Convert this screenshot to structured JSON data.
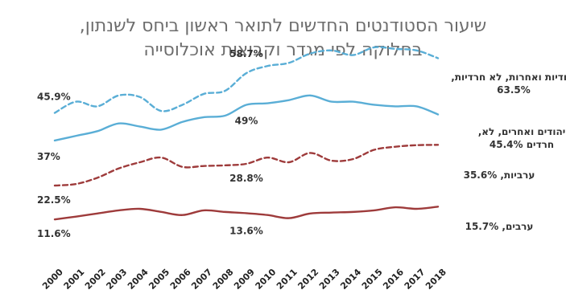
{
  "chart_data": {
    "type": "line",
    "title": "שיעור הסטודנטים החדשים לתואר ראשון ביחס לשנתון,",
    "subtitle": "בחלוקה לפי מגדר וקבוצות אוכלוסייה",
    "categories": [
      "2000",
      "2001",
      "2002",
      "2003",
      "2004",
      "2005",
      "2006",
      "2007",
      "2008",
      "2009",
      "2010",
      "2011",
      "2012",
      "2013",
      "2014",
      "2015",
      "2016",
      "2017",
      "2018"
    ],
    "series": [
      {
        "name": "יהודיות ואחרות, לא חרדיות, 63.5%",
        "color": "#5aaed6",
        "dash": "dashed",
        "values": [
          45.9,
          49.5,
          48.0,
          51.5,
          51.0,
          46.5,
          48.5,
          52.0,
          53.0,
          58.7,
          61.0,
          62.0,
          65.0,
          66.0,
          64.5,
          67.0,
          66.5,
          66.0,
          63.5
        ],
        "start_label": "45.9%",
        "mid_label": "58.7%"
      },
      {
        "name": "יהודים ואחרים, לא חרדים, 45.4%",
        "color": "#5aaed6",
        "dash": "solid",
        "values": [
          37.0,
          38.5,
          40.0,
          42.5,
          41.5,
          40.5,
          43.0,
          44.5,
          45.0,
          48.5,
          49.0,
          50.0,
          51.5,
          49.5,
          49.5,
          48.5,
          48.0,
          48.0,
          45.4
        ],
        "start_label": "37%",
        "mid_label": "49%"
      },
      {
        "name": "ערביות, 35.6%",
        "color": "#9e3b3b",
        "dash": "dashed",
        "values": [
          22.5,
          23.0,
          25.0,
          28.0,
          30.0,
          31.5,
          28.5,
          28.8,
          29.0,
          29.5,
          31.5,
          30.0,
          33.0,
          30.5,
          31.0,
          34.0,
          35.0,
          35.5,
          35.6
        ],
        "start_label": "22.5%",
        "mid_label": "28.8%"
      },
      {
        "name": "ערבים, 15.7%",
        "color": "#9e3b3b",
        "dash": "solid",
        "values": [
          11.6,
          12.5,
          13.5,
          14.5,
          15.0,
          14.0,
          13.0,
          14.5,
          14.0,
          13.6,
          13.0,
          12.0,
          13.5,
          13.8,
          14.0,
          14.5,
          15.5,
          15.0,
          15.7
        ],
        "start_label": "11.6%",
        "mid_label": "13.6%"
      }
    ],
    "ylim": [
      0,
      75
    ],
    "grid": false,
    "legend": "right-of-lines"
  }
}
